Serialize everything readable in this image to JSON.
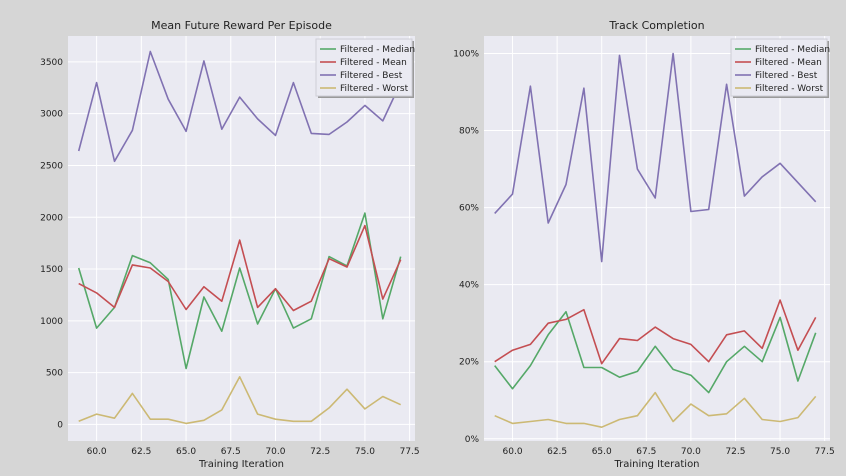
{
  "chart_data": [
    {
      "type": "line",
      "title": "Mean Future Reward Per Episode",
      "xlabel": "Training Iteration",
      "ylabel": "",
      "xlim": [
        58.4,
        77.8
      ],
      "ylim": [
        -160,
        3750
      ],
      "xticks": [
        60.0,
        62.5,
        65.0,
        67.5,
        70.0,
        72.5,
        75.0,
        77.5
      ],
      "xtick_labels": [
        "60.0",
        "62.5",
        "65.0",
        "67.5",
        "70.0",
        "72.5",
        "75.0",
        "77.5"
      ],
      "yticks": [
        0,
        500,
        1000,
        1500,
        2000,
        2500,
        3000,
        3500
      ],
      "ytick_labels": [
        "0",
        "500",
        "1000",
        "1500",
        "2000",
        "2500",
        "3000",
        "3500"
      ],
      "grid": true,
      "legend_position": "top-right",
      "x": [
        59,
        60,
        61,
        62,
        63,
        64,
        65,
        66,
        67,
        68,
        69,
        70,
        71,
        72,
        73,
        74,
        75,
        76,
        77
      ],
      "series": [
        {
          "name": "Filtered - Median",
          "color": "#55a868",
          "values": [
            1510,
            930,
            1130,
            1630,
            1560,
            1400,
            540,
            1230,
            900,
            1510,
            970,
            1310,
            930,
            1020,
            1620,
            1530,
            2040,
            1020,
            1620
          ]
        },
        {
          "name": "Filtered - Mean",
          "color": "#c44e52",
          "values": [
            1360,
            1270,
            1130,
            1540,
            1510,
            1380,
            1110,
            1330,
            1190,
            1780,
            1130,
            1310,
            1100,
            1190,
            1600,
            1520,
            1920,
            1210,
            1590
          ]
        },
        {
          "name": "Filtered - Best",
          "color": "#8172b2",
          "values": [
            2640,
            3300,
            2540,
            2840,
            3600,
            3140,
            2830,
            3510,
            2850,
            3160,
            2950,
            2790,
            3300,
            2810,
            2800,
            2920,
            3080,
            2930,
            3300
          ]
        },
        {
          "name": "Filtered - Worst",
          "color": "#ccb974",
          "values": [
            30,
            100,
            60,
            300,
            50,
            50,
            10,
            40,
            140,
            460,
            100,
            50,
            30,
            30,
            160,
            340,
            150,
            270,
            190
          ]
        }
      ]
    },
    {
      "type": "line",
      "title": "Track Completion",
      "xlabel": "Training Iteration",
      "ylabel": "",
      "xlim": [
        58.4,
        77.8
      ],
      "ylim": [
        -0.0057,
        1.0454
      ],
      "xticks": [
        60.0,
        62.5,
        65.0,
        67.5,
        70.0,
        72.5,
        75.0,
        77.5
      ],
      "xtick_labels": [
        "60.0",
        "62.5",
        "65.0",
        "67.5",
        "70.0",
        "72.5",
        "75.0",
        "77.5"
      ],
      "yticks": [
        0,
        0.2,
        0.4,
        0.6,
        0.8,
        1.0
      ],
      "ytick_labels": [
        "0%",
        "20%",
        "40%",
        "60%",
        "80%",
        "100%"
      ],
      "grid": true,
      "legend_position": "top-right",
      "x": [
        59,
        60,
        61,
        62,
        63,
        64,
        65,
        66,
        67,
        68,
        69,
        70,
        71,
        72,
        73,
        74,
        75,
        76,
        77
      ],
      "series": [
        {
          "name": "Filtered - Median",
          "color": "#55a868",
          "values": [
            0.19,
            0.13,
            0.19,
            0.27,
            0.33,
            0.185,
            0.185,
            0.16,
            0.175,
            0.24,
            0.18,
            0.165,
            0.12,
            0.2,
            0.24,
            0.2,
            0.315,
            0.15,
            0.275
          ]
        },
        {
          "name": "Filtered - Mean",
          "color": "#c44e52",
          "values": [
            0.2,
            0.23,
            0.245,
            0.3,
            0.31,
            0.335,
            0.195,
            0.26,
            0.255,
            0.29,
            0.26,
            0.245,
            0.2,
            0.27,
            0.28,
            0.235,
            0.36,
            0.23,
            0.315
          ]
        },
        {
          "name": "Filtered - Best",
          "color": "#8172b2",
          "values": [
            0.585,
            0.635,
            0.915,
            0.56,
            0.66,
            0.91,
            0.46,
            0.995,
            0.7,
            0.625,
            1.0,
            0.59,
            0.595,
            0.92,
            0.63,
            0.68,
            0.715,
            0.665,
            0.615
          ]
        },
        {
          "name": "Filtered - Worst",
          "color": "#ccb974",
          "values": [
            0.06,
            0.04,
            0.045,
            0.05,
            0.04,
            0.04,
            0.03,
            0.05,
            0.06,
            0.12,
            0.045,
            0.09,
            0.06,
            0.065,
            0.105,
            0.05,
            0.045,
            0.055,
            0.11
          ]
        }
      ]
    }
  ]
}
